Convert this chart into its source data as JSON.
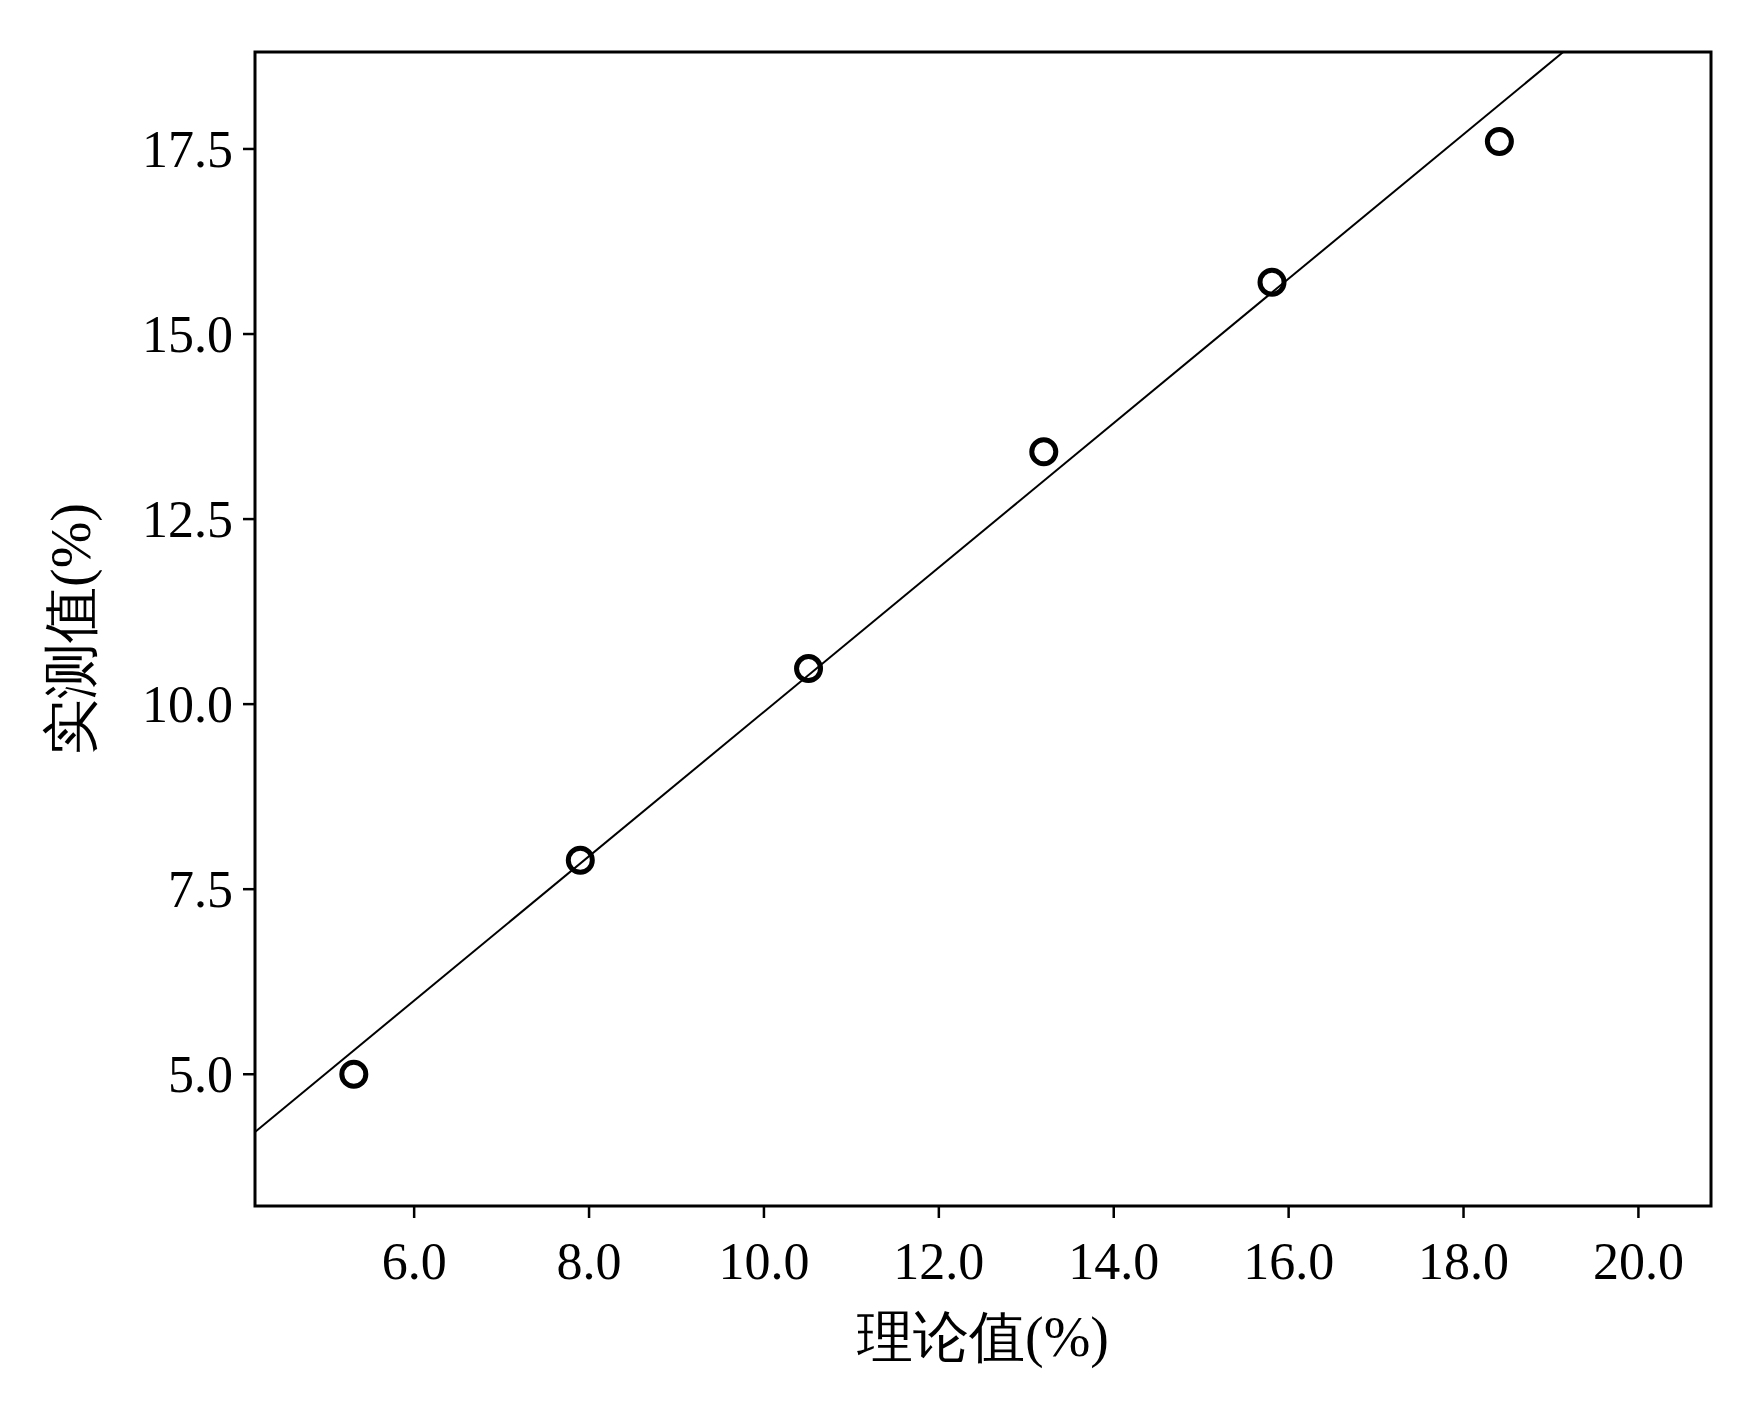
{
  "chart_data": {
    "type": "scatter",
    "xlabel": "理论值(%)",
    "ylabel": "实测值(%)",
    "xlim": [
      4.18,
      20.83
    ],
    "ylim": [
      3.22,
      18.81
    ],
    "xticks": [
      {
        "value": 6,
        "label": "6.0"
      },
      {
        "value": 8,
        "label": "8.0"
      },
      {
        "value": 10,
        "label": "10.0"
      },
      {
        "value": 12,
        "label": "12.0"
      },
      {
        "value": 14,
        "label": "14.0"
      },
      {
        "value": 16,
        "label": "16.0"
      },
      {
        "value": 18,
        "label": "18.0"
      },
      {
        "value": 20,
        "label": "20.0"
      }
    ],
    "yticks": [
      {
        "value": 5,
        "label": "5.0"
      },
      7.5,
      {
        "value": 10,
        "label": "10.0"
      },
      12.5,
      {
        "value": 15,
        "label": "15.0"
      },
      17.5
    ],
    "grid": false,
    "series": [
      {
        "marker": "circle",
        "color": "#000000",
        "x": [
          5.31,
          7.9,
          10.51,
          13.2,
          15.81,
          18.41
        ],
        "values": [
          5.0,
          7.89,
          10.48,
          13.41,
          15.7,
          17.6
        ]
      },
      {
        "type": "line",
        "color": "#000000",
        "x": [
          4.18,
          19.14
        ],
        "values": [
          4.22,
          18.81
        ]
      }
    ]
  }
}
